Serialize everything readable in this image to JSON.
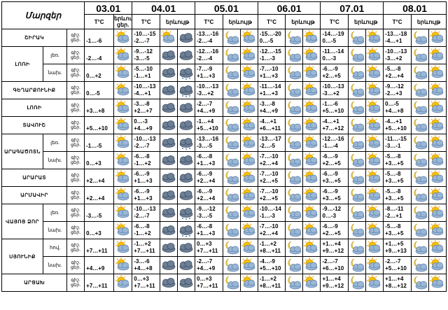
{
  "header": {
    "region_label": "Մարզեր",
    "temp_label": "T°C",
    "phenomena_label": "երևույթ",
    "night_abbr": "գիշ.",
    "day_abbr": "ցեր.",
    "dates": [
      "03.01",
      "04.01",
      "05.01",
      "06.01",
      "07.01",
      "08.01"
    ]
  },
  "rows": [
    {
      "region": "ՇԻՐԱԿ",
      "sub": "",
      "temps": [
        "-1…-6",
        "-10…-15\n-2…-7",
        "-13…-16\n-2…-4",
        "-15…-20\n0…-5",
        "-14…-19\n0…-5",
        "-13…-18\n-4…+1"
      ],
      "icons": [
        "sun-cloud-icon",
        "sun-cloud-icon",
        "cloud-icon",
        "moon-cloud-icon",
        "sun-cloud-icon",
        "moon-cloud-icon",
        "sun-cloud-icon",
        "moon-cloud-icon",
        "sun-cloud-icon",
        "moon-cloud-icon",
        "sun-cloud-icon"
      ]
    },
    {
      "region": "ԼՈՌԻ",
      "sub": "լեռ.",
      "temps": [
        "-2…-4",
        "-9…-12\n-3…-5",
        "-12…-16\n-2…-4",
        "-12…-15\n-1…-3",
        "-11…-14\n0…-3",
        "-10…-13\n-3…+2"
      ],
      "icons": [
        "sun-cloud-icon",
        "cloud-icon",
        "cloud-icon",
        "moon-cloud-icon",
        "sun-cloud-icon",
        "moon-cloud-icon",
        "sun-cloud-icon",
        "moon-cloud-icon",
        "sun-cloud-icon",
        "moon-cloud-icon",
        "sun-cloud-icon"
      ]
    },
    {
      "region": "",
      "sub": "նախ.",
      "temps": [
        "0…+2",
        "-5…-10\n-1…+1",
        "-7…-9\n+1…+3",
        "-7…-10\n+1…+3",
        "-6…-9\n+2…+5",
        "-5…-8\n+2…+4"
      ],
      "icons": [
        "sun-cloud-icon",
        "cloud-icon",
        "snow-cloud-icon",
        "moon-cloud-icon",
        "sun-cloud-icon",
        "moon-cloud-icon",
        "sun-cloud-icon",
        "moon-cloud-icon",
        "sun-cloud-icon",
        "moon-cloud-icon",
        "sun-cloud-icon"
      ]
    },
    {
      "region": "ԳԵՂԱՐՔՈՒՆԻՔ",
      "sub": "",
      "temps": [
        "0…-5",
        "-10…-13\n-4…+1",
        "-10…-13\n-3…+2",
        "-11…-14\n+1…+3",
        "-10…-13\n-3…+2",
        "-9…-12\n-2…+3"
      ],
      "icons": [
        "sun-cloud-icon",
        "cloud-icon",
        "snow-cloud-icon",
        "moon-cloud-icon",
        "sun-cloud-icon",
        "moon-cloud-icon",
        "sun-cloud-icon",
        "moon-cloud-icon",
        "sun-cloud-icon",
        "moon-cloud-icon",
        "sun-cloud-icon"
      ]
    },
    {
      "region": "ԼՈՌԻ",
      "sub": "",
      "temps": [
        "+3…+8",
        "-3…-8\n+2…+7",
        "-2…-7\n+4…+9",
        "-3…-8\n+4…+9",
        "-1…-6\n+5…+10",
        "0…-5\n+4…+8"
      ],
      "icons": [
        "sun-cloud-icon",
        "cloud-icon",
        "cloud-icon",
        "moon-cloud-icon",
        "sun-cloud-icon",
        "moon-cloud-icon",
        "sun-cloud-icon",
        "moon-cloud-icon",
        "sun-cloud-icon",
        "moon-cloud-icon",
        "sun-cloud-icon"
      ]
    },
    {
      "region": "ՏԱՎՈՒՇ",
      "sub": "",
      "temps": [
        "+5…+10",
        "0…-3\n+4…+9",
        "-1…+4\n+5…+10",
        "-4…+1\n+6…+11",
        "-4…+1\n+7…+12",
        "-4…+1\n+5…+10"
      ],
      "icons": [
        "sun-cloud-icon",
        "cloud-icon",
        "cloud-icon",
        "moon-cloud-icon",
        "sun-cloud-icon",
        "moon-cloud-icon",
        "sun-cloud-icon",
        "moon-cloud-icon",
        "sun-cloud-icon",
        "moon-cloud-icon",
        "sun-cloud-icon"
      ]
    },
    {
      "region": "ԱՐԱԳԱԾՈՏՆ",
      "sub": "լեռ.",
      "temps": [
        "-1…-5",
        "-10…-13\n-2…-7",
        "-13…-16\n-3…-5",
        "-13…-17\n-2…-5",
        "-12…-16\n-1…-4",
        "-11…-15\n-3…-1"
      ],
      "icons": [
        "sun-cloud-icon",
        "cloud-icon",
        "snow-cloud-icon",
        "moon-cloud-icon",
        "sun-cloud-icon",
        "moon-cloud-icon",
        "sun-cloud-icon",
        "moon-cloud-icon",
        "sun-cloud-icon",
        "moon-cloud-icon",
        "sun-cloud-icon"
      ]
    },
    {
      "region": "",
      "sub": "նախ.",
      "temps": [
        "0…+3",
        "-6…-8\n-1…+2",
        "-6…-8\n+1…+3",
        "-7…-10\n+2…+4",
        "-6…-9\n+2…+5",
        "-5…-8\n+3…+5"
      ],
      "icons": [
        "sun-cloud-icon",
        "cloud-icon",
        "cloud-icon",
        "moon-cloud-icon",
        "sun-cloud-icon",
        "moon-cloud-icon",
        "sun-cloud-icon",
        "moon-cloud-icon",
        "sun-cloud-icon",
        "moon-cloud-icon",
        "sun-cloud-icon"
      ]
    },
    {
      "region": "ԱՐԱՐԱՏ",
      "sub": "",
      "temps": [
        "+2…+4",
        "-6…-9\n+1…+3",
        "-6…-9\n+2…+4",
        "-7…-10\n+2…+5",
        "-6…-9\n+3…+5",
        "-5…-8\n+3…+5"
      ],
      "icons": [
        "sun-cloud-icon",
        "cloud-icon",
        "cloud-icon",
        "moon-cloud-icon",
        "sun-cloud-icon",
        "moon-cloud-icon",
        "sun-cloud-icon",
        "moon-cloud-icon",
        "sun-cloud-icon",
        "moon-cloud-icon",
        "sun-cloud-icon"
      ]
    },
    {
      "region": "ԱՐՄԱՎԻՐ",
      "sub": "",
      "temps": [
        "+2…+4",
        "-6…-9\n+1…+3",
        "-6…-9\n+2…+4",
        "-7…-10\n+2…+5",
        "-6…-9\n+3…+5",
        "-5…-8\n+3…+5"
      ],
      "icons": [
        "sun-cloud-icon",
        "cloud-icon",
        "cloud-icon",
        "moon-cloud-icon",
        "sun-cloud-icon",
        "moon-cloud-icon",
        "sun-cloud-icon",
        "moon-cloud-icon",
        "sun-cloud-icon",
        "moon-cloud-icon",
        "sun-cloud-icon"
      ]
    },
    {
      "region": "ՎԱՅՈՑ ՁՈՐ",
      "sub": "լեռ.",
      "temps": [
        "-3…-5",
        "-10…-13\n-2…-7",
        "-9…-12\n-3…-5",
        "-10…-14\n-1…-3",
        "-9…-12\n0…-3",
        "-8…-11\n-2…+1"
      ],
      "icons": [
        "sun-cloud-icon",
        "cloud-icon",
        "snow-cloud-icon",
        "moon-cloud-icon",
        "sun-cloud-icon",
        "moon-cloud-icon",
        "sun-cloud-icon",
        "moon-cloud-icon",
        "sun-cloud-icon",
        "moon-cloud-icon",
        "sun-cloud-icon"
      ]
    },
    {
      "region": "",
      "sub": "նախ.",
      "temps": [
        "0…+3",
        "-6…-8\n-1…+2",
        "-6…-8\n+1…+3",
        "-7…-10\n+2…+4",
        "-6…-9\n+2…+5",
        "-5…-8\n+3…+5"
      ],
      "icons": [
        "sun-cloud-icon",
        "cloud-icon",
        "snow-cloud-icon",
        "moon-cloud-icon",
        "sun-cloud-icon",
        "moon-cloud-icon",
        "sun-cloud-icon",
        "moon-cloud-icon",
        "sun-cloud-icon",
        "moon-cloud-icon",
        "sun-cloud-icon"
      ]
    },
    {
      "region": "ՍՅՈՒՆԻՔ",
      "sub": "հով.",
      "temps": [
        "+7…+11",
        "-1…+2\n+7…+11",
        "0…+3\n+7…+11",
        "-1…+2\n+8…+11",
        "+1…+4\n+9…+12",
        "+1…+5\n+9…+13"
      ],
      "icons": [
        "sun-cloud-icon",
        "cloud-icon",
        "cloud-icon",
        "moon-cloud-icon",
        "sun-cloud-icon",
        "moon-cloud-icon",
        "sun-cloud-icon",
        "moon-cloud-icon",
        "sun-cloud-icon",
        "moon-cloud-icon",
        "sun-cloud-icon"
      ]
    },
    {
      "region": "",
      "sub": "նախ.",
      "temps": [
        "+4…+9",
        "-3…-6\n+4…+8",
        "-2…-7\n+4…+9",
        "-4…-9\n+5…+10",
        "-2…-7\n+6…+10",
        "-2…-7\n+5…+10"
      ],
      "icons": [
        "sun-cloud-icon",
        "cloud-icon",
        "cloud-icon",
        "moon-cloud-icon",
        "sun-cloud-icon",
        "moon-cloud-icon",
        "sun-cloud-icon",
        "moon-cloud-icon",
        "sun-cloud-icon",
        "moon-cloud-icon",
        "sun-cloud-icon"
      ]
    },
    {
      "region": "ԱՐՑԱԽ",
      "sub": "",
      "temps": [
        "+7…+11",
        "0…+3\n+7…+11",
        "0…+3\n+7…+11",
        "-1…+2\n+8…+11",
        "+1…+4\n+9…+12",
        "+1…+4\n+8…+12"
      ],
      "icons": [
        "sun-cloud-icon",
        "cloud-icon",
        "cloud-icon",
        "moon-cloud-icon",
        "sun-cloud-icon",
        "moon-cloud-icon",
        "sun-cloud-icon",
        "moon-cloud-icon",
        "sun-cloud-icon",
        "moon-cloud-icon",
        "sun-cloud-icon"
      ]
    }
  ]
}
